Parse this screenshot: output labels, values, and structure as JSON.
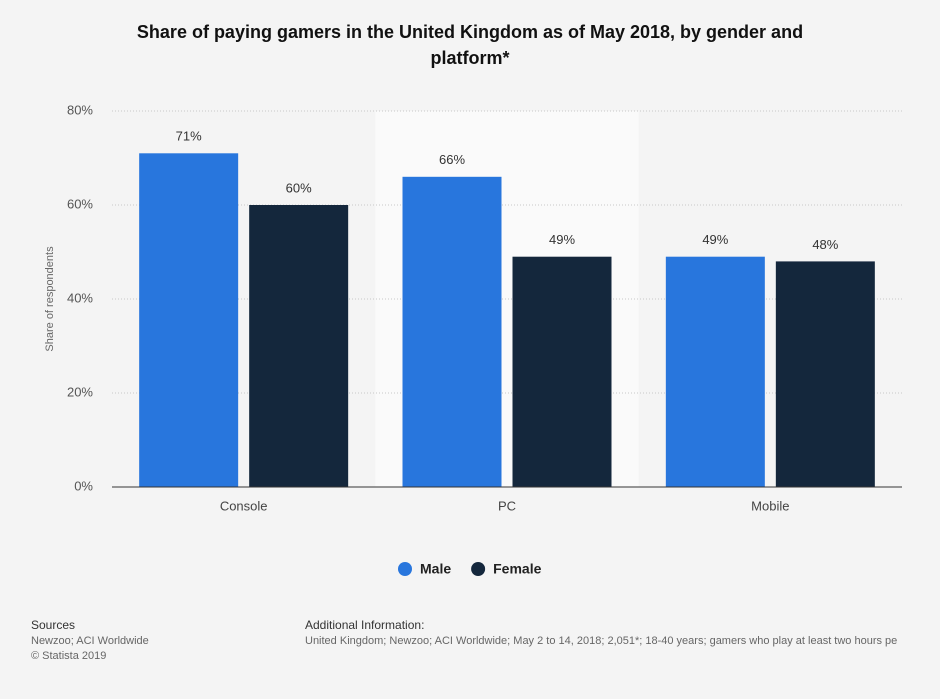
{
  "chart_data": {
    "type": "bar",
    "title": "Share of paying gamers in the United Kingdom as of May 2018, by gender and platform*",
    "y_label": "Share of respondents",
    "categories": [
      "Console",
      "PC",
      "Mobile"
    ],
    "series": [
      {
        "name": "Male",
        "color": "#2876dd",
        "values": [
          71,
          66,
          49
        ],
        "value_labels": [
          "71%",
          "66%",
          "49%"
        ]
      },
      {
        "name": "Female",
        "color": "#14273c",
        "values": [
          60,
          49,
          48
        ],
        "value_labels": [
          "60%",
          "49%",
          "48%"
        ]
      }
    ],
    "ylim": [
      0,
      80
    ],
    "yticks": [
      {
        "value": 0,
        "label": "0%"
      },
      {
        "value": 20,
        "label": "20%"
      },
      {
        "value": 40,
        "label": "40%"
      },
      {
        "value": 60,
        "label": "60%"
      },
      {
        "value": 80,
        "label": "80%"
      }
    ],
    "grid": true,
    "legend": "bottom"
  },
  "sources": {
    "title": "Sources",
    "lines": [
      "Newzoo; ACI Worldwide",
      "© Statista 2019"
    ]
  },
  "additional_info": {
    "title": "Additional Information:",
    "text": "United Kingdom; Newzoo; ACI Worldwide; May 2 to 14, 2018; 2,051*; 18-40 years; gamers who play at least two hours pe"
  }
}
